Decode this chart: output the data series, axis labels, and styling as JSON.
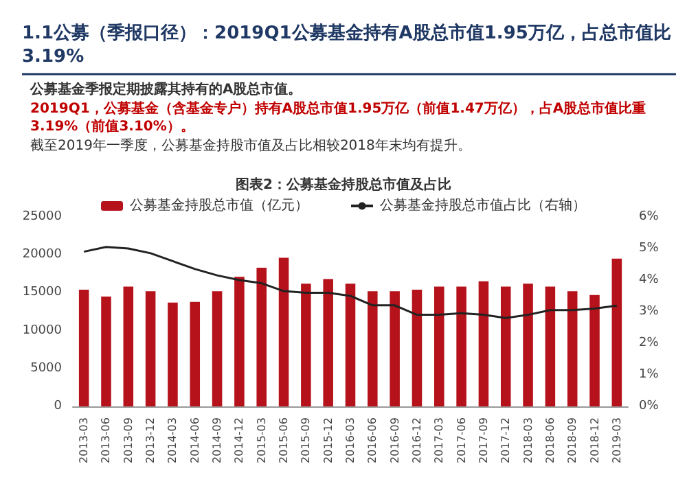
{
  "chart_data": {
    "type": "bar",
    "title": "1.1公募（季报口径）：2019Q1公募基金持有A股总市值1.95万亿，占总市值比3.19%",
    "subtitle": "图表2：公募基金持股总市值及占比",
    "annotations": [
      "公募基金季报定期披露其持有的A股总市值。",
      "2019Q1，公募基金（含基金专户）持有A股总市值1.95万亿（前值1.47万亿），占A股总市值比重3.19%（前值3.10%）。",
      "截至2019年一季度，公募基金持股市值及占比相较2018年末均有提升。"
    ],
    "categories": [
      "2013-03",
      "2013-06",
      "2013-09",
      "2013-12",
      "2014-03",
      "2014-06",
      "2014-09",
      "2014-12",
      "2015-03",
      "2015-06",
      "2015-09",
      "2015-12",
      "2016-03",
      "2016-06",
      "2016-09",
      "2016-12",
      "2017-03",
      "2017-06",
      "2017-09",
      "2017-12",
      "2018-03",
      "2018-06",
      "2018-09",
      "2018-12",
      "2019-03"
    ],
    "series": [
      {
        "name": "公募基金持股总市值（亿元）",
        "color": "#b5121b",
        "values": [
          15400,
          14500,
          15800,
          15200,
          13700,
          13800,
          15200,
          17100,
          18300,
          19600,
          16200,
          16800,
          16200,
          15200,
          15200,
          15400,
          15800,
          15800,
          16500,
          15800,
          16200,
          15800,
          15200,
          14700,
          19500
        ]
      },
      {
        "name": "公募基金持股总市值占比（右轴）",
        "type": "line",
        "axis": "y2",
        "color": "#222222",
        "values": [
          4.9,
          5.05,
          5.0,
          4.85,
          4.6,
          4.35,
          4.15,
          4.0,
          3.9,
          3.65,
          3.6,
          3.6,
          3.5,
          3.2,
          3.2,
          2.9,
          2.9,
          2.95,
          2.9,
          2.8,
          2.9,
          3.05,
          3.05,
          3.1,
          3.19
        ]
      }
    ],
    "ylim": [
      0,
      25000
    ],
    "yticks": [
      0,
      5000,
      10000,
      15000,
      20000,
      25000
    ],
    "y2lim": [
      0,
      6
    ],
    "y2ticks": [
      {
        "value": 0,
        "label": "0%"
      },
      {
        "value": 1,
        "label": "1%"
      },
      {
        "value": 2,
        "label": "2%"
      },
      {
        "value": 3,
        "label": "3%"
      },
      {
        "value": 4,
        "label": "4%"
      },
      {
        "value": 5,
        "label": "5%"
      },
      {
        "value": 6,
        "label": "6%"
      }
    ],
    "grid": false,
    "legend": "top",
    "marker": "none"
  }
}
